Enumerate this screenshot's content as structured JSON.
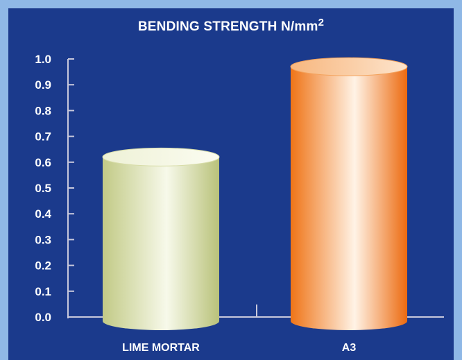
{
  "chart_data": {
    "type": "bar",
    "title": "BENDING STRENGTH N/mm",
    "title_superscript": "2",
    "categories": [
      "LIME MORTAR",
      "A3"
    ],
    "values": [
      0.62,
      0.97
    ],
    "ylim": [
      0,
      1.0
    ],
    "yticks": [
      "0.0",
      "0.1",
      "0.2",
      "0.3",
      "0.4",
      "0.5",
      "0.6",
      "0.7",
      "0.8",
      "0.9",
      "1.0"
    ],
    "grid": false,
    "legend": "none",
    "colors": {
      "background": "#1b3a8c",
      "border": "#8fb8e6",
      "axis": "#c9c9dc",
      "text": "#ffffff",
      "bar_light": [
        "#c7cf8e",
        "#f4f6e2",
        "#bcc47e"
      ],
      "bar_orange": [
        "#f07a20",
        "#fff1e0",
        "#ee6f12"
      ]
    }
  }
}
